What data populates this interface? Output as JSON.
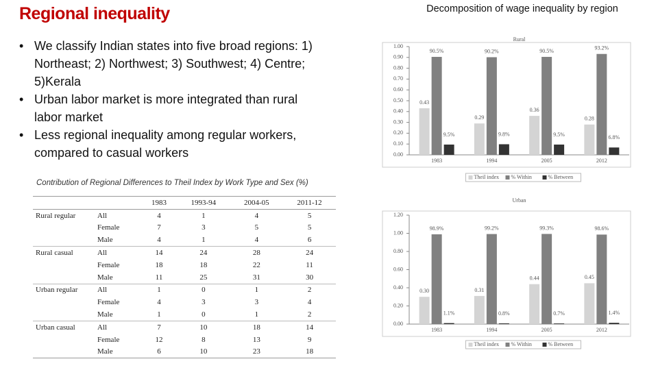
{
  "title": "Regional inequality",
  "bullets": [
    "We classify Indian states into five broad regions: 1) Northeast; 2) Northwest; 3) Southwest;  4) Centre; 5)Kerala",
    "Urban labor market is more integrated than rural labor market",
    "Less regional inequality among regular workers, compared to casual workers"
  ],
  "table": {
    "title": "Contribution of Regional Differences to Theil Index by Work Type and Sex (%)",
    "columns": [
      "1983",
      "1993-94",
      "2004-05",
      "2011-12"
    ],
    "groups": [
      {
        "name": "Rural regular",
        "rows": [
          {
            "label": "All",
            "values": [
              4,
              1,
              4,
              5
            ]
          },
          {
            "label": "Female",
            "values": [
              7,
              3,
              5,
              5
            ]
          },
          {
            "label": "Male",
            "values": [
              4,
              1,
              4,
              6
            ]
          }
        ]
      },
      {
        "name": "Rural casual",
        "rows": [
          {
            "label": "All",
            "values": [
              14,
              24,
              28,
              24
            ]
          },
          {
            "label": "Female",
            "values": [
              18,
              18,
              22,
              11
            ]
          },
          {
            "label": "Male",
            "values": [
              11,
              25,
              31,
              30
            ]
          }
        ]
      },
      {
        "name": "Urban regular",
        "rows": [
          {
            "label": "All",
            "values": [
              1,
              0,
              1,
              2
            ]
          },
          {
            "label": "Female",
            "values": [
              4,
              3,
              3,
              4
            ]
          },
          {
            "label": "Male",
            "values": [
              1,
              0,
              1,
              2
            ]
          }
        ]
      },
      {
        "name": "Urban casual",
        "rows": [
          {
            "label": "All",
            "values": [
              7,
              10,
              18,
              14
            ]
          },
          {
            "label": "Female",
            "values": [
              12,
              8,
              13,
              9
            ]
          },
          {
            "label": "Male",
            "values": [
              6,
              10,
              23,
              18
            ]
          }
        ]
      }
    ]
  },
  "charts_title": "Decomposition of wage inequality by region",
  "chart_data": [
    {
      "type": "bar",
      "title": "Rural",
      "categories": [
        "1983",
        "1994",
        "2005",
        "2012"
      ],
      "ylim": [
        0,
        1
      ],
      "yticks": [
        {
          "value": 0,
          "label": "0.00"
        },
        {
          "value": 0.1,
          "label": "0.10"
        },
        {
          "value": 0.2,
          "label": "0.20"
        },
        {
          "value": 0.3,
          "label": "0.30"
        },
        {
          "value": 0.4,
          "label": "0.40"
        },
        {
          "value": 0.5,
          "label": "0.50"
        },
        {
          "value": 0.6,
          "label": "0.60"
        },
        {
          "value": 0.7,
          "label": "0.70"
        },
        {
          "value": 0.8,
          "label": "0.80"
        },
        {
          "value": 0.9,
          "label": "0.90"
        },
        {
          "value": 1,
          "label": "1.00"
        }
      ],
      "series": [
        {
          "name": "Theil index",
          "color": "#d4d4d4",
          "values": [
            0.43,
            0.29,
            0.36,
            0.28
          ],
          "value_labels": [
            "0.43",
            "0.29",
            "0.36",
            "0.28"
          ]
        },
        {
          "name": "% Within",
          "color": "#808080",
          "values": [
            0.905,
            0.902,
            0.905,
            0.932
          ],
          "value_labels": [
            "90.5%",
            "90.2%",
            "90.5%",
            "93.2%"
          ]
        },
        {
          "name": "% Between",
          "color": "#333333",
          "values": [
            0.095,
            0.098,
            0.095,
            0.068
          ],
          "value_labels": [
            "9.5%",
            "9.8%",
            "9.5%",
            "6.8%"
          ]
        }
      ]
    },
    {
      "type": "bar",
      "title": "Urban",
      "categories": [
        "1983",
        "1994",
        "2005",
        "2012"
      ],
      "ylim": [
        0,
        1.2
      ],
      "yticks": [
        {
          "value": 0,
          "label": "0.00"
        },
        {
          "value": 0.2,
          "label": "0.20"
        },
        {
          "value": 0.4,
          "label": "0.40"
        },
        {
          "value": 0.6,
          "label": "0.60"
        },
        {
          "value": 0.8,
          "label": "0.80"
        },
        {
          "value": 1,
          "label": "1.00"
        },
        {
          "value": 1.2,
          "label": "1.20"
        }
      ],
      "series": [
        {
          "name": "Theil index",
          "color": "#d4d4d4",
          "values": [
            0.3,
            0.31,
            0.44,
            0.45
          ],
          "value_labels": [
            "0.30",
            "0.31",
            "0.44",
            "0.45"
          ]
        },
        {
          "name": "% Within",
          "color": "#808080",
          "values": [
            0.989,
            0.992,
            0.993,
            0.986
          ],
          "value_labels": [
            "98.9%",
            "99.2%",
            "99.3%",
            "98.6%"
          ]
        },
        {
          "name": "% Between",
          "color": "#333333",
          "values": [
            0.011,
            0.008,
            0.007,
            0.014
          ],
          "value_labels": [
            "1.1%",
            "0.8%",
            "0.7%",
            "1.4%"
          ]
        }
      ]
    }
  ]
}
